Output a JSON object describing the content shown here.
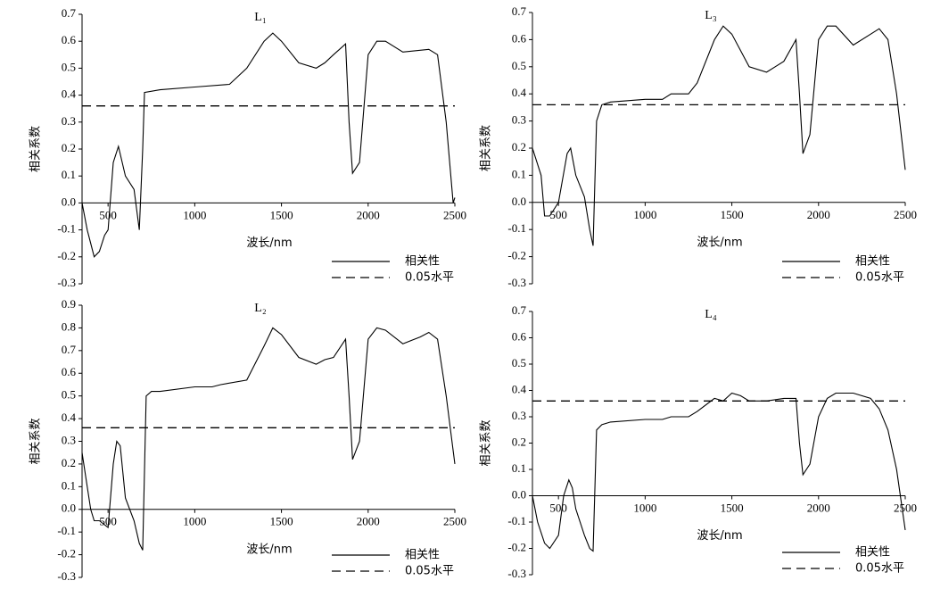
{
  "chart_data": [
    {
      "type": "line",
      "title": "L₁",
      "xlabel": "波长/nm",
      "ylabel": "相关系数",
      "xlim": [
        350,
        2500
      ],
      "xticks": [
        500,
        1000,
        1500,
        2000,
        2500
      ],
      "ylim": [
        -0.3,
        0.7
      ],
      "yticks": [
        -0.3,
        -0.2,
        -0.1,
        {
          "value": 0,
          "label": "0.0"
        },
        0.1,
        0.2,
        0.3,
        0.4,
        0.5,
        0.6,
        0.7
      ],
      "series": [
        {
          "name": "相关性",
          "color": "#000000",
          "dash": false,
          "x": [
            350,
            380,
            400,
            420,
            450,
            480,
            500,
            530,
            560,
            600,
            650,
            680,
            700,
            710,
            800,
            1000,
            1200,
            1300,
            1400,
            1450,
            1500,
            1600,
            1700,
            1750,
            1800,
            1870,
            1890,
            1910,
            1950,
            2000,
            2050,
            2100,
            2200,
            2350,
            2400,
            2450,
            2490,
            2500
          ],
          "values": [
            0,
            -0.1,
            -0.15,
            -0.2,
            -0.18,
            -0.12,
            -0.1,
            0.15,
            0.21,
            0.1,
            0.05,
            -0.1,
            0.2,
            0.41,
            0.42,
            0.43,
            0.44,
            0.5,
            0.6,
            0.63,
            0.6,
            0.52,
            0.5,
            0.52,
            0.55,
            0.59,
            0.3,
            0.11,
            0.15,
            0.55,
            0.6,
            0.6,
            0.56,
            0.57,
            0.55,
            0.3,
            0,
            0.02
          ]
        },
        {
          "name": "0.05水平",
          "color": "#000000",
          "dash": true,
          "x": [
            350,
            2500
          ],
          "values": [
            0.36,
            0.36
          ]
        }
      ]
    },
    {
      "type": "line",
      "title": "L₃",
      "xlabel": "波长/nm",
      "ylabel": "相关系数",
      "xlim": [
        350,
        2500
      ],
      "xticks": [
        500,
        1000,
        1500,
        2000,
        2500
      ],
      "ylim": [
        -0.3,
        0.7
      ],
      "yticks": [
        -0.3,
        -0.2,
        -0.1,
        {
          "value": 0,
          "label": "0.0"
        },
        0.1,
        0.2,
        0.3,
        0.4,
        0.5,
        0.6,
        0.7
      ],
      "series": [
        {
          "name": "相关性",
          "color": "#000000",
          "dash": false,
          "x": [
            350,
            400,
            420,
            450,
            500,
            550,
            570,
            600,
            650,
            680,
            700,
            720,
            750,
            800,
            1000,
            1100,
            1150,
            1250,
            1300,
            1400,
            1450,
            1500,
            1600,
            1700,
            1750,
            1800,
            1870,
            1890,
            1910,
            1950,
            2000,
            2050,
            2100,
            2200,
            2300,
            2350,
            2400,
            2450,
            2500
          ],
          "values": [
            0.2,
            0.1,
            -0.05,
            -0.05,
            0,
            0.18,
            0.2,
            0.1,
            0.02,
            -0.1,
            -0.16,
            0.3,
            0.36,
            0.37,
            0.38,
            0.38,
            0.4,
            0.4,
            0.44,
            0.6,
            0.65,
            0.62,
            0.5,
            0.48,
            0.5,
            0.52,
            0.6,
            0.4,
            0.18,
            0.25,
            0.6,
            0.65,
            0.65,
            0.58,
            0.62,
            0.64,
            0.6,
            0.4,
            0.12
          ]
        },
        {
          "name": "0.05水平",
          "color": "#000000",
          "dash": true,
          "x": [
            350,
            2500
          ],
          "values": [
            0.36,
            0.36
          ]
        }
      ]
    },
    {
      "type": "line",
      "title": "L₂",
      "xlabel": "波长/nm",
      "ylabel": "相关系数",
      "xlim": [
        350,
        2500
      ],
      "xticks": [
        500,
        1000,
        1500,
        2000,
        2500
      ],
      "ylim": [
        -0.3,
        0.9
      ],
      "yticks": [
        -0.3,
        -0.2,
        -0.1,
        {
          "value": 0,
          "label": "0.0"
        },
        0.1,
        0.2,
        0.3,
        0.4,
        0.5,
        0.6,
        0.7,
        0.8,
        0.9
      ],
      "series": [
        {
          "name": "相关性",
          "color": "#000000",
          "dash": false,
          "x": [
            350,
            380,
            400,
            420,
            450,
            500,
            530,
            550,
            570,
            600,
            650,
            680,
            700,
            720,
            750,
            800,
            1000,
            1100,
            1150,
            1300,
            1400,
            1450,
            1500,
            1600,
            1700,
            1750,
            1800,
            1870,
            1890,
            1910,
            1950,
            2000,
            2050,
            2100,
            2200,
            2300,
            2350,
            2400,
            2450,
            2500
          ],
          "values": [
            0.25,
            0.1,
            0,
            -0.05,
            -0.05,
            -0.08,
            0.2,
            0.3,
            0.28,
            0.05,
            -0.05,
            -0.15,
            -0.18,
            0.5,
            0.52,
            0.52,
            0.54,
            0.54,
            0.55,
            0.57,
            0.72,
            0.8,
            0.77,
            0.67,
            0.64,
            0.66,
            0.67,
            0.75,
            0.5,
            0.22,
            0.3,
            0.75,
            0.8,
            0.79,
            0.73,
            0.76,
            0.78,
            0.75,
            0.5,
            0.2
          ]
        },
        {
          "name": "0.05水平",
          "color": "#000000",
          "dash": true,
          "x": [
            350,
            2500
          ],
          "values": [
            0.36,
            0.36
          ]
        }
      ]
    },
    {
      "type": "line",
      "title": "L₄",
      "xlabel": "波长/nm",
      "ylabel": "相关系数",
      "xlim": [
        350,
        2500
      ],
      "xticks": [
        500,
        1000,
        1500,
        2000,
        2500
      ],
      "ylim": [
        -0.3,
        0.7
      ],
      "yticks": [
        -0.3,
        -0.2,
        -0.1,
        {
          "value": 0,
          "label": "0.0"
        },
        0.1,
        0.2,
        0.3,
        0.4,
        0.5,
        0.6,
        0.7
      ],
      "series": [
        {
          "name": "相关性",
          "color": "#000000",
          "dash": false,
          "x": [
            350,
            380,
            420,
            450,
            500,
            530,
            560,
            580,
            600,
            650,
            680,
            700,
            720,
            750,
            800,
            1000,
            1100,
            1150,
            1250,
            1300,
            1400,
            1450,
            1500,
            1550,
            1600,
            1700,
            1800,
            1870,
            1890,
            1910,
            1950,
            2000,
            2050,
            2100,
            2200,
            2300,
            2350,
            2400,
            2450,
            2500
          ],
          "values": [
            0,
            -0.1,
            -0.18,
            -0.2,
            -0.15,
            0,
            0.06,
            0.03,
            -0.05,
            -0.15,
            -0.2,
            -0.21,
            0.25,
            0.27,
            0.28,
            0.29,
            0.29,
            0.3,
            0.3,
            0.32,
            0.37,
            0.36,
            0.39,
            0.38,
            0.36,
            0.36,
            0.37,
            0.37,
            0.2,
            0.08,
            0.12,
            0.3,
            0.37,
            0.39,
            0.39,
            0.37,
            0.33,
            0.25,
            0.1,
            -0.13
          ]
        },
        {
          "name": "0.05水平",
          "color": "#000000",
          "dash": true,
          "x": [
            350,
            2500
          ],
          "values": [
            0.36,
            0.36
          ]
        }
      ]
    }
  ]
}
